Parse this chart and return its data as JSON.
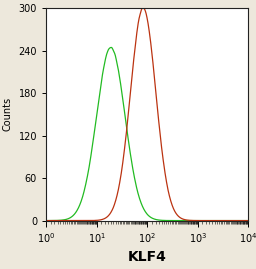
{
  "title": "",
  "xlabel": "KLF4",
  "ylabel": "Counts",
  "xlim_log": [
    0,
    4
  ],
  "ylim": [
    0,
    300
  ],
  "yticks": [
    0,
    60,
    120,
    180,
    240,
    300
  ],
  "green_peak_log": 1.28,
  "green_peak_height": 245,
  "green_sigma_log": 0.28,
  "red_peak_log": 1.92,
  "red_peak_height": 300,
  "red_sigma_log": 0.25,
  "green_color": "#22bb22",
  "red_color": "#bb3311",
  "bg_color": "#ede8dc",
  "plot_bg": "#ffffff",
  "linewidth": 0.9,
  "xlabel_fontsize": 10,
  "ylabel_fontsize": 7,
  "tick_fontsize": 7
}
